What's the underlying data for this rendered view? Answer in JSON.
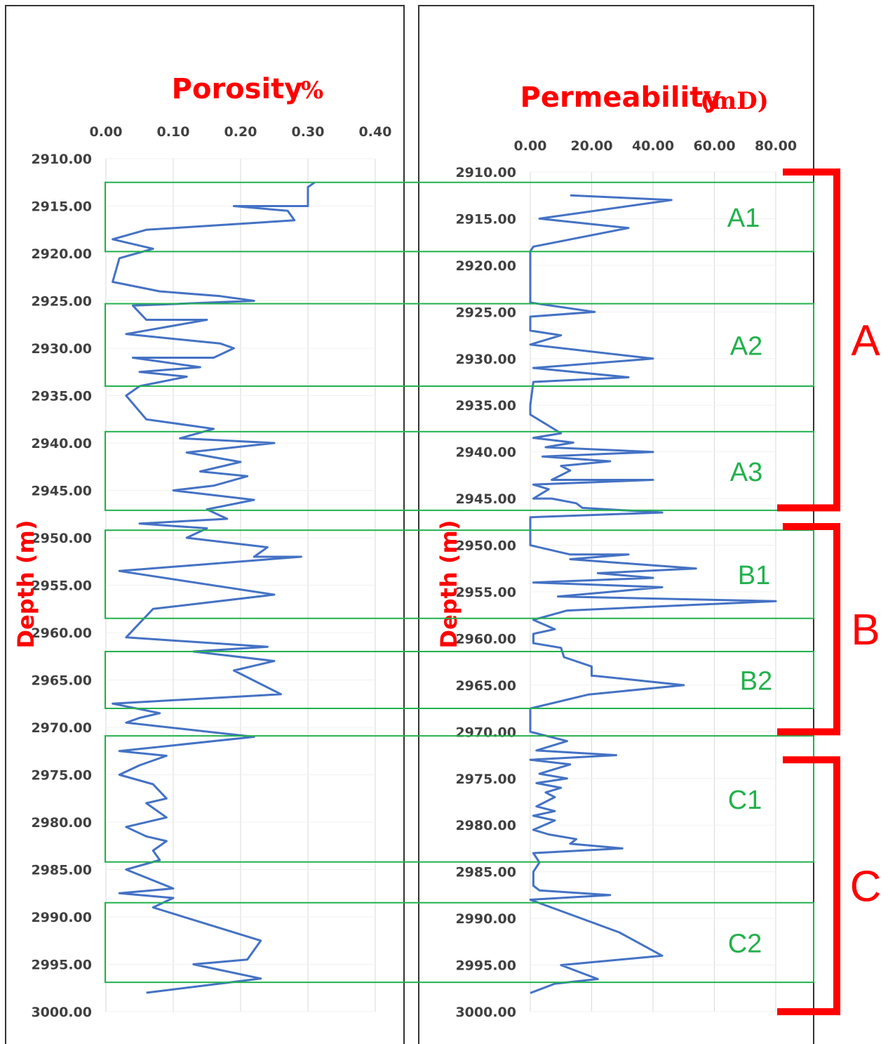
{
  "chart_data": [
    {
      "type": "line",
      "title": "Porosity",
      "title_unit": "%",
      "ylabel": "Depth (m)",
      "xlim": [
        0,
        0.4
      ],
      "ylim": [
        2910,
        3000
      ],
      "x_ticks": [
        "0.00",
        "0.10",
        "0.20",
        "0.30",
        "0.40"
      ],
      "y_ticks": [
        "2910.00",
        "2915.00",
        "2920.00",
        "2925.00",
        "2930.00",
        "2935.00",
        "2940.00",
        "2945.00",
        "2950.00",
        "2955.00",
        "2960.00",
        "2965.00",
        "2970.00",
        "2975.00",
        "2980.00",
        "2985.00",
        "2990.00",
        "2995.00",
        "3000.00"
      ],
      "grid": "vertical",
      "series": [
        {
          "color": "#4472c4",
          "points": [
            [
              0.31,
              2912.5
            ],
            [
              0.3,
              2913
            ],
            [
              0.3,
              2915
            ],
            [
              0.19,
              2915
            ],
            [
              0.27,
              2915.5
            ],
            [
              0.28,
              2916.5
            ],
            [
              0.06,
              2917.5
            ],
            [
              0.01,
              2918.5
            ],
            [
              0.07,
              2919.5
            ],
            [
              0.02,
              2920.5
            ],
            [
              0.01,
              2923
            ],
            [
              0.08,
              2924
            ],
            [
              0.17,
              2924.5
            ],
            [
              0.22,
              2925
            ],
            [
              0.04,
              2925.5
            ],
            [
              0.06,
              2927
            ],
            [
              0.15,
              2927
            ],
            [
              0.03,
              2928.5
            ],
            [
              0.17,
              2929.5
            ],
            [
              0.19,
              2930
            ],
            [
              0.16,
              2931
            ],
            [
              0.04,
              2931
            ],
            [
              0.14,
              2932
            ],
            [
              0.05,
              2932.5
            ],
            [
              0.12,
              2933
            ],
            [
              0.05,
              2934
            ],
            [
              0.03,
              2935
            ],
            [
              0.06,
              2937.5
            ],
            [
              0.16,
              2938.5
            ],
            [
              0.11,
              2939.5
            ],
            [
              0.25,
              2940
            ],
            [
              0.12,
              2941
            ],
            [
              0.2,
              2942
            ],
            [
              0.14,
              2943
            ],
            [
              0.21,
              2943.5
            ],
            [
              0.16,
              2944.5
            ],
            [
              0.1,
              2945
            ],
            [
              0.16,
              2945.5
            ],
            [
              0.22,
              2946
            ],
            [
              0.15,
              2947
            ],
            [
              0.18,
              2948
            ],
            [
              0.05,
              2948.5
            ],
            [
              0.15,
              2949
            ],
            [
              0.12,
              2950
            ],
            [
              0.24,
              2951
            ],
            [
              0.22,
              2952
            ],
            [
              0.29,
              2952
            ],
            [
              0.02,
              2953.5
            ],
            [
              0.25,
              2956
            ],
            [
              0.07,
              2957.5
            ],
            [
              0.03,
              2960.5
            ],
            [
              0.24,
              2961.5
            ],
            [
              0.13,
              2962
            ],
            [
              0.25,
              2963
            ],
            [
              0.19,
              2964
            ],
            [
              0.26,
              2966.5
            ],
            [
              0.01,
              2967.5
            ],
            [
              0.08,
              2968.5
            ],
            [
              0.05,
              2969
            ],
            [
              0.03,
              2969.5
            ],
            [
              0.22,
              2971
            ],
            [
              0.02,
              2972.5
            ],
            [
              0.09,
              2973
            ],
            [
              0.05,
              2974
            ],
            [
              0.02,
              2975
            ],
            [
              0.07,
              2976
            ],
            [
              0.09,
              2977.5
            ],
            [
              0.06,
              2978
            ],
            [
              0.09,
              2979.5
            ],
            [
              0.03,
              2980.5
            ],
            [
              0.06,
              2981.5
            ],
            [
              0.09,
              2982
            ],
            [
              0.07,
              2983
            ],
            [
              0.08,
              2984
            ],
            [
              0.03,
              2985
            ],
            [
              0.1,
              2987
            ],
            [
              0.02,
              2987.5
            ],
            [
              0.1,
              2988
            ],
            [
              0.07,
              2989
            ],
            [
              0.23,
              2992.5
            ],
            [
              0.21,
              2994.5
            ],
            [
              0.13,
              2995
            ],
            [
              0.23,
              2996.5
            ],
            [
              0.06,
              2998
            ]
          ]
        }
      ]
    },
    {
      "type": "line",
      "title": "Permeability",
      "title_unit": "(mD)",
      "ylabel": "Depth (m)",
      "xlim": [
        0,
        80
      ],
      "ylim": [
        2910,
        3000
      ],
      "x_ticks": [
        "0.00",
        "20.00",
        "40.00",
        "60.00",
        "80.00"
      ],
      "y_ticks": [
        "2910.00",
        "2915.00",
        "2920.00",
        "2925.00",
        "2930.00",
        "2935.00",
        "2940.00",
        "2945.00",
        "2950.00",
        "2955.00",
        "2960.00",
        "2965.00",
        "2970.00",
        "2975.00",
        "2980.00",
        "2985.00",
        "2990.00",
        "2995.00",
        "3000.00"
      ],
      "grid": "vertical",
      "series": [
        {
          "color": "#4472c4",
          "points": [
            [
              13,
              2912.5
            ],
            [
              46,
              2913
            ],
            [
              3,
              2915
            ],
            [
              32,
              2916
            ],
            [
              1,
              2918
            ],
            [
              0,
              2918.5
            ],
            [
              0,
              2924
            ],
            [
              21,
              2925
            ],
            [
              0,
              2925.5
            ],
            [
              0,
              2927
            ],
            [
              10,
              2927.5
            ],
            [
              0,
              2928.5
            ],
            [
              40,
              2930
            ],
            [
              1,
              2931
            ],
            [
              32,
              2932
            ],
            [
              1,
              2932.5
            ],
            [
              0,
              2935
            ],
            [
              0,
              2936
            ],
            [
              10,
              2938
            ],
            [
              1,
              2938.5
            ],
            [
              14,
              2939
            ],
            [
              5,
              2939.5
            ],
            [
              40,
              2940
            ],
            [
              4,
              2940.5
            ],
            [
              26,
              2941
            ],
            [
              10,
              2941.5
            ],
            [
              13,
              2942
            ],
            [
              7,
              2943
            ],
            [
              40,
              2943
            ],
            [
              1,
              2943.5
            ],
            [
              6,
              2944
            ],
            [
              1,
              2945
            ],
            [
              7,
              2945
            ],
            [
              15,
              2945.5
            ],
            [
              17,
              2946
            ],
            [
              43,
              2946.5
            ],
            [
              0,
              2947
            ],
            [
              0,
              2950
            ],
            [
              13,
              2951
            ],
            [
              32,
              2951
            ],
            [
              13,
              2951.5
            ],
            [
              54,
              2952.5
            ],
            [
              22,
              2953
            ],
            [
              40,
              2953.5
            ],
            [
              1,
              2954
            ],
            [
              43,
              2954.5
            ],
            [
              9,
              2955.5
            ],
            [
              80,
              2956
            ],
            [
              12,
              2957
            ],
            [
              1,
              2958
            ],
            [
              8,
              2959
            ],
            [
              1,
              2959.5
            ],
            [
              1,
              2960.5
            ],
            [
              10,
              2961
            ],
            [
              11,
              2962
            ],
            [
              20,
              2963
            ],
            [
              20,
              2964
            ],
            [
              21,
              2964
            ],
            [
              50,
              2965
            ],
            [
              19,
              2966
            ],
            [
              0,
              2967.5
            ],
            [
              0,
              2970
            ],
            [
              12,
              2971
            ],
            [
              2,
              2972
            ],
            [
              28,
              2972.5
            ],
            [
              0,
              2973
            ],
            [
              13,
              2973.5
            ],
            [
              3,
              2974.5
            ],
            [
              12,
              2975
            ],
            [
              2,
              2975.5
            ],
            [
              10,
              2976
            ],
            [
              5,
              2976.5
            ],
            [
              8,
              2977
            ],
            [
              2,
              2978
            ],
            [
              8,
              2978.5
            ],
            [
              1,
              2979
            ],
            [
              8,
              2979.5
            ],
            [
              1,
              2980.5
            ],
            [
              6,
              2981
            ],
            [
              15,
              2981.5
            ],
            [
              13,
              2982
            ],
            [
              30,
              2982.5
            ],
            [
              1,
              2983
            ],
            [
              3,
              2984
            ],
            [
              1,
              2985
            ],
            [
              1,
              2986.5
            ],
            [
              3,
              2987
            ],
            [
              26,
              2987.5
            ],
            [
              0,
              2988
            ],
            [
              29,
              2991.5
            ],
            [
              43,
              2994
            ],
            [
              10,
              2995
            ],
            [
              22,
              2996.5
            ],
            [
              8,
              2997
            ],
            [
              0,
              2998
            ]
          ]
        }
      ]
    }
  ],
  "zones": [
    {
      "label": "A1",
      "top": 2912.5,
      "bottom": 2919.8
    },
    {
      "label": "A2",
      "top": 2925.3,
      "bottom": 2934.0
    },
    {
      "label": "A3",
      "top": 2938.8,
      "bottom": 2947.1
    },
    {
      "label": "B1",
      "top": 2949.2,
      "bottom": 2958.5
    },
    {
      "label": "B2",
      "top": 2962.0,
      "bottom": 2968.0
    },
    {
      "label": "C1",
      "top": 2970.9,
      "bottom": 2984.2
    },
    {
      "label": "C2",
      "top": 2988.5,
      "bottom": 2996.9
    }
  ],
  "groups": [
    {
      "label": "A",
      "top": 2910.0,
      "bottom": 2946.0
    },
    {
      "label": "B",
      "top": 2948.0,
      "bottom": 2970.0
    },
    {
      "label": "C",
      "top": 2973.0,
      "bottom": 3000.0
    }
  ],
  "colors": {
    "curve": "#4472c4",
    "zone": "#22b14c",
    "bracket": "#ff0000",
    "grid": "#d9d9d9",
    "frame": "#333333"
  }
}
